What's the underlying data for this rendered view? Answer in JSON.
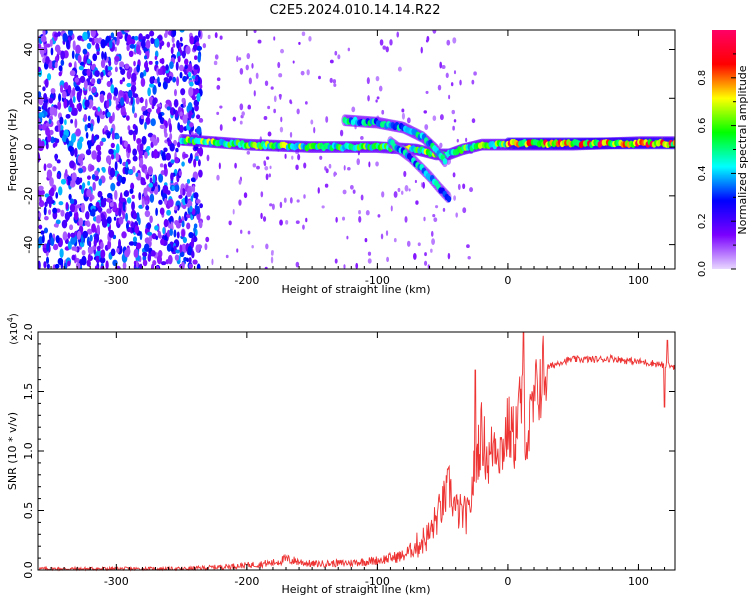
{
  "title": "C2E5.2024.010.14.14.R22",
  "chart_data": [
    {
      "type": "heatmap",
      "title": "C2E5.2024.010.14.14.R22",
      "xlabel": "Height of straight line (km)",
      "ylabel": "Frequency (Hz)",
      "xlim": [
        -360,
        128
      ],
      "ylim": [
        -50,
        48
      ],
      "xticks": [
        -300,
        -200,
        -100,
        0,
        100
      ],
      "yticks": [
        -40,
        -20,
        0,
        20,
        40
      ],
      "colorbar": {
        "label": "Normalized spectral amplitude",
        "range": [
          0.0,
          1.0
        ],
        "ticks": [
          0.0,
          0.2,
          0.4,
          0.6,
          0.8
        ],
        "colors": [
          "#e8d8ff",
          "#7a00ff",
          "#0000ff",
          "#00ffff",
          "#00ff00",
          "#ffff00",
          "#ff0000",
          "#ff0066"
        ]
      },
      "features": [
        {
          "name": "main-trace",
          "points": [
            [
              -250,
              3
            ],
            [
              -200,
              1
            ],
            [
              -150,
              0
            ],
            [
              -100,
              0
            ],
            [
              -70,
              -1
            ],
            [
              -55,
              -3
            ],
            [
              -45,
              -3
            ],
            [
              -35,
              -1
            ],
            [
              -20,
              1
            ],
            [
              0,
              1
            ],
            [
              50,
              1
            ],
            [
              100,
              2
            ],
            [
              128,
              2
            ]
          ],
          "amplitude": 0.65
        },
        {
          "name": "upper-branch",
          "points": [
            [
              -125,
              11
            ],
            [
              -100,
              10
            ],
            [
              -80,
              8
            ],
            [
              -65,
              4
            ],
            [
              -55,
              -1
            ],
            [
              -48,
              -6
            ]
          ],
          "amplitude": 0.5
        },
        {
          "name": "lower-branch",
          "points": [
            [
              -90,
              2
            ],
            [
              -75,
              -4
            ],
            [
              -60,
              -12
            ],
            [
              -52,
              -17
            ],
            [
              -45,
              -21
            ]
          ],
          "amplitude": 0.45
        },
        {
          "name": "bright-core",
          "points": [
            [
              0,
              1.5
            ],
            [
              20,
              1.5
            ],
            [
              50,
              1.5
            ],
            [
              90,
              1.5
            ],
            [
              128,
              1.5
            ]
          ],
          "amplitude": 0.9
        }
      ]
    },
    {
      "type": "line",
      "xlabel": "Height of straight line (km)",
      "ylabel": "SNR (10 * v/v)",
      "multiplier_label": "(x10",
      "multiplier_exp": "4",
      "color": "#ee3333",
      "xlim": [
        -360,
        128
      ],
      "ylim": [
        0.0,
        2.0
      ],
      "xticks": [
        -300,
        -200,
        -100,
        0,
        100
      ],
      "yticks": [
        0.0,
        0.5,
        1.0,
        1.5,
        2.0
      ],
      "ytick_labels": [
        "0.0",
        "0.5",
        "1.0",
        "1.5",
        "2.0"
      ],
      "x": [
        -360,
        -300,
        -250,
        -230,
        -200,
        -180,
        -170,
        -150,
        -120,
        -100,
        -80,
        -70,
        -60,
        -50,
        -45,
        -40,
        -30,
        -25,
        -20,
        -15,
        -10,
        -5,
        0,
        5,
        10,
        15,
        20,
        25,
        30,
        35,
        40,
        50,
        60,
        70,
        80,
        90,
        100,
        110,
        120,
        128
      ],
      "values": [
        0.01,
        0.01,
        0.01,
        0.02,
        0.04,
        0.06,
        0.09,
        0.05,
        0.06,
        0.08,
        0.12,
        0.2,
        0.3,
        0.55,
        0.7,
        0.5,
        0.45,
        0.9,
        1.15,
        0.9,
        1.1,
        1.0,
        1.2,
        1.1,
        1.45,
        1.1,
        1.4,
        1.6,
        1.7,
        1.72,
        1.75,
        1.77,
        1.77,
        1.77,
        1.78,
        1.76,
        1.75,
        1.74,
        1.72,
        1.71
      ],
      "peaks": [
        [
          -25,
          1.68
        ],
        [
          12,
          2.0
        ],
        [
          122,
          1.93
        ],
        [
          120,
          1.37
        ]
      ]
    }
  ]
}
